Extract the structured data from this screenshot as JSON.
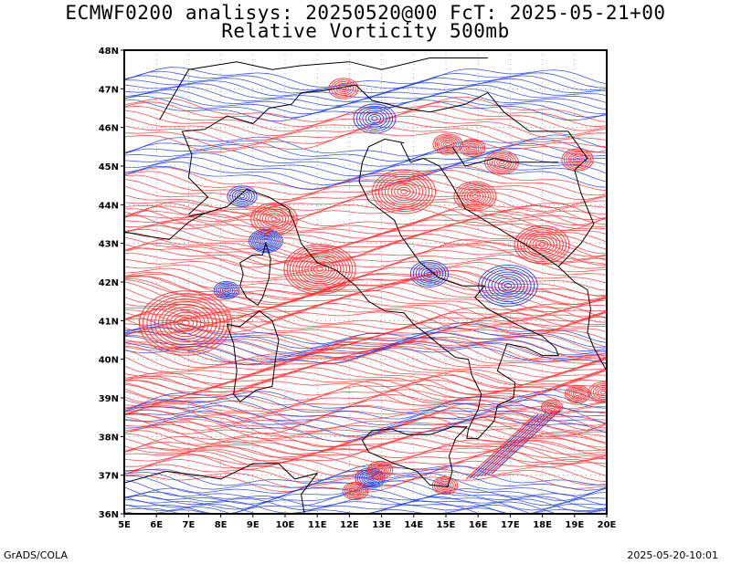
{
  "header": {
    "title_line1": "ECMWF0200 analisys: 20250520@00 FcT: 2025-05-21+00",
    "title_line2": "Relative Vorticity 500mb"
  },
  "footer": {
    "left": "GrADS/COLA",
    "right": "2025-05-20-10:01"
  },
  "map": {
    "lon_range": [
      5,
      20
    ],
    "lat_range": [
      36,
      48
    ],
    "lat_labels": [
      "48N",
      "47N",
      "46N",
      "45N",
      "44N",
      "43N",
      "42N",
      "41N",
      "40N",
      "39N",
      "38N",
      "37N",
      "36N"
    ],
    "lon_labels": [
      "5E",
      "6E",
      "7E",
      "8E",
      "9E",
      "10E",
      "11E",
      "12E",
      "13E",
      "14E",
      "15E",
      "16E",
      "17E",
      "18E",
      "19E",
      "20E"
    ],
    "colors": {
      "positive": "#ff3030",
      "negative": "#2040e0",
      "coast": "#000000",
      "grid": "#777777"
    }
  }
}
